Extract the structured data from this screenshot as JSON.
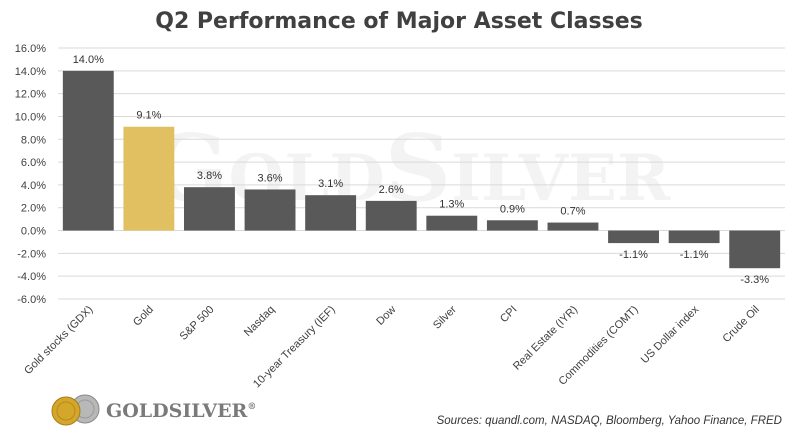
{
  "chart_data": {
    "type": "bar",
    "title": "Q2 Performance of Major Asset Classes",
    "categories": [
      "Gold stocks (GDX)",
      "Gold",
      "S&P 500",
      "Nasdaq",
      "10-year Treasury (IEF)",
      "Dow",
      "Silver",
      "CPI",
      "Real Estate (IYR)",
      "Commodities (COMT)",
      "US Dollar index",
      "Crude Oil"
    ],
    "values": [
      14.0,
      9.1,
      3.8,
      3.6,
      3.1,
      2.6,
      1.3,
      0.9,
      0.7,
      -1.1,
      -1.1,
      -3.3
    ],
    "data_labels": [
      "14.0%",
      "9.1%",
      "3.8%",
      "3.6%",
      "3.1%",
      "2.6%",
      "1.3%",
      "0.9%",
      "0.7%",
      "-1.1%",
      "-1.1%",
      "-3.3%"
    ],
    "highlight_index": 1,
    "ylim": [
      -6,
      16
    ],
    "yticks": [
      16,
      14,
      12,
      10,
      8,
      6,
      4,
      2,
      0,
      -2,
      -4,
      -6
    ],
    "ytick_labels": [
      "16.0%",
      "14.0%",
      "12.0%",
      "10.0%",
      "8.0%",
      "6.0%",
      "4.0%",
      "2.0%",
      "0.0%",
      "-2.0%",
      "-4.0%",
      "-6.0%"
    ],
    "grid": true,
    "xlabel": "",
    "ylabel": "",
    "colors": {
      "bar": "#595959",
      "highlight": "#e0c060",
      "grid": "#d9d9d9",
      "text": "#404040"
    }
  },
  "watermark": {
    "text_big1": "G",
    "text_small1": "OLD",
    "text_big2": "S",
    "text_small2": "ILVER"
  },
  "logo": {
    "text": "GOLDSILVER",
    "trademark": "®",
    "icon": "gold-silver-coins-icon"
  },
  "source": "Sources: quandl.com, NASDAQ, Bloomberg, Yahoo Finance, FRED"
}
